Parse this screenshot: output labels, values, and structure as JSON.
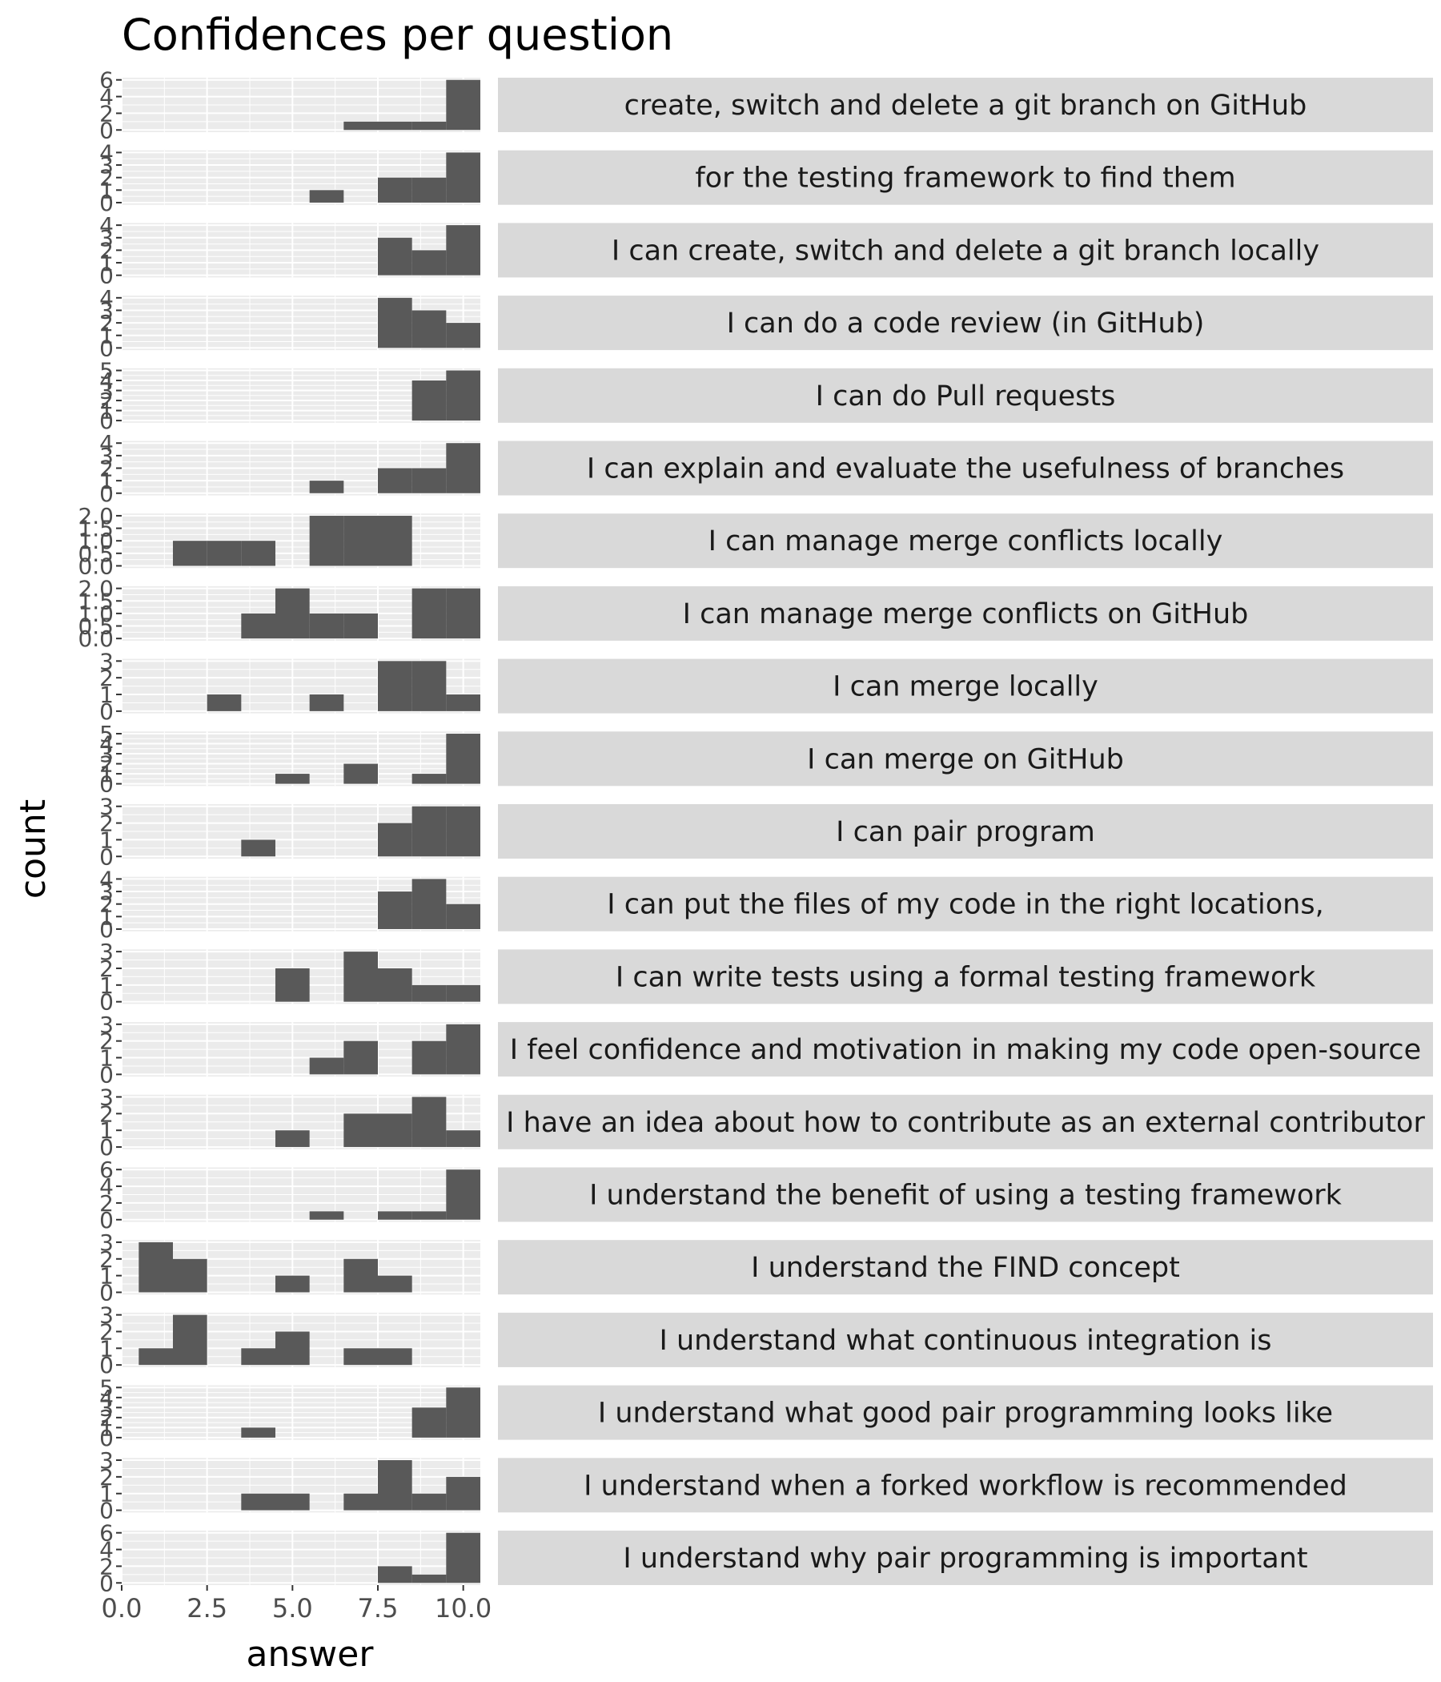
{
  "chart_data": {
    "type": "bar",
    "subtype": "faceted-histogram",
    "title": "Confidences per question",
    "xlabel": "answer",
    "ylabel": "count",
    "xlim": [
      0,
      10.5
    ],
    "xticks": [
      "0.0",
      "2.5",
      "5.0",
      "7.5",
      "10.0"
    ],
    "xtick_values": [
      0,
      2.5,
      5,
      7.5,
      10
    ],
    "bins": [
      1,
      2,
      3,
      4,
      5,
      6,
      7,
      8,
      9,
      10
    ],
    "bin_width": 1,
    "grid": true,
    "strip_position": "right",
    "facets": [
      {
        "label": "create, switch and delete a git branch on GitHub",
        "ymax": 6,
        "yticks": [
          "0",
          "2",
          "4",
          "6"
        ],
        "ytick_values": [
          0,
          2,
          4,
          6
        ],
        "counts": [
          0,
          0,
          0,
          0,
          0,
          0,
          1,
          1,
          1,
          6
        ]
      },
      {
        "label": "for the testing framework to find them",
        "ymax": 4,
        "yticks": [
          "0",
          "1",
          "2",
          "3",
          "4"
        ],
        "ytick_values": [
          0,
          1,
          2,
          3,
          4
        ],
        "counts": [
          0,
          0,
          0,
          0,
          0,
          1,
          0,
          2,
          2,
          4
        ]
      },
      {
        "label": "I can create, switch and delete a git branch locally",
        "ymax": 4,
        "yticks": [
          "0",
          "1",
          "2",
          "3",
          "4"
        ],
        "ytick_values": [
          0,
          1,
          2,
          3,
          4
        ],
        "counts": [
          0,
          0,
          0,
          0,
          0,
          0,
          0,
          3,
          2,
          4
        ]
      },
      {
        "label": "I can do a code review (in GitHub)",
        "ymax": 4,
        "yticks": [
          "0",
          "1",
          "2",
          "3",
          "4"
        ],
        "ytick_values": [
          0,
          1,
          2,
          3,
          4
        ],
        "counts": [
          0,
          0,
          0,
          0,
          0,
          0,
          0,
          4,
          3,
          2
        ]
      },
      {
        "label": "I can do Pull requests",
        "ymax": 5,
        "yticks": [
          "0",
          "1",
          "2",
          "3",
          "4",
          "5"
        ],
        "ytick_values": [
          0,
          1,
          2,
          3,
          4,
          5
        ],
        "counts": [
          0,
          0,
          0,
          0,
          0,
          0,
          0,
          0,
          4,
          5
        ]
      },
      {
        "label": "I can explain and evaluate the usefulness of branches",
        "ymax": 4,
        "yticks": [
          "0",
          "1",
          "2",
          "3",
          "4"
        ],
        "ytick_values": [
          0,
          1,
          2,
          3,
          4
        ],
        "counts": [
          0,
          0,
          0,
          0,
          0,
          1,
          0,
          2,
          2,
          4
        ]
      },
      {
        "label": "I can manage merge conflicts locally",
        "ymax": 2,
        "yticks": [
          "0.0",
          "0.5",
          "1.0",
          "1.5",
          "2.0"
        ],
        "ytick_values": [
          0,
          0.5,
          1,
          1.5,
          2
        ],
        "counts": [
          0,
          1,
          1,
          1,
          0,
          2,
          2,
          2,
          0,
          0
        ]
      },
      {
        "label": "I can manage merge conflicts on GitHub",
        "ymax": 2,
        "yticks": [
          "0.0",
          "0.5",
          "1.0",
          "1.5",
          "2.0"
        ],
        "ytick_values": [
          0,
          0.5,
          1,
          1.5,
          2
        ],
        "counts": [
          0,
          0,
          0,
          1,
          2,
          1,
          1,
          0,
          2,
          2
        ]
      },
      {
        "label": "I can merge locally",
        "ymax": 3,
        "yticks": [
          "0",
          "1",
          "2",
          "3"
        ],
        "ytick_values": [
          0,
          1,
          2,
          3
        ],
        "counts": [
          0,
          0,
          1,
          0,
          0,
          1,
          0,
          3,
          3,
          1
        ]
      },
      {
        "label": "I can merge on GitHub",
        "ymax": 5,
        "yticks": [
          "0",
          "1",
          "2",
          "3",
          "4",
          "5"
        ],
        "ytick_values": [
          0,
          1,
          2,
          3,
          4,
          5
        ],
        "counts": [
          0,
          0,
          0,
          0,
          1,
          0,
          2,
          0,
          1,
          5
        ]
      },
      {
        "label": "I can pair program",
        "ymax": 3,
        "yticks": [
          "0",
          "1",
          "2",
          "3"
        ],
        "ytick_values": [
          0,
          1,
          2,
          3
        ],
        "counts": [
          0,
          0,
          0,
          1,
          0,
          0,
          0,
          2,
          3,
          3
        ]
      },
      {
        "label": "I can put the files of my code in the right locations,",
        "ymax": 4,
        "yticks": [
          "0",
          "1",
          "2",
          "3",
          "4"
        ],
        "ytick_values": [
          0,
          1,
          2,
          3,
          4
        ],
        "counts": [
          0,
          0,
          0,
          0,
          0,
          0,
          0,
          3,
          4,
          2
        ]
      },
      {
        "label": "I can write tests using a formal testing framework",
        "ymax": 3,
        "yticks": [
          "0",
          "1",
          "2",
          "3"
        ],
        "ytick_values": [
          0,
          1,
          2,
          3
        ],
        "counts": [
          0,
          0,
          0,
          0,
          2,
          0,
          3,
          2,
          1,
          1
        ]
      },
      {
        "label": "I feel confidence and motivation in making my code open-source",
        "ymax": 3,
        "yticks": [
          "0",
          "1",
          "2",
          "3"
        ],
        "ytick_values": [
          0,
          1,
          2,
          3
        ],
        "counts": [
          0,
          0,
          0,
          0,
          0,
          1,
          2,
          0,
          2,
          3
        ]
      },
      {
        "label": "I have an idea about how to contribute as an external contributor",
        "ymax": 3,
        "yticks": [
          "0",
          "1",
          "2",
          "3"
        ],
        "ytick_values": [
          0,
          1,
          2,
          3
        ],
        "counts": [
          0,
          0,
          0,
          0,
          1,
          0,
          2,
          2,
          3,
          1
        ]
      },
      {
        "label": "I understand the benefit of using a testing framework",
        "ymax": 6,
        "yticks": [
          "0",
          "2",
          "4",
          "6"
        ],
        "ytick_values": [
          0,
          2,
          4,
          6
        ],
        "counts": [
          0,
          0,
          0,
          0,
          0,
          1,
          0,
          1,
          1,
          6
        ]
      },
      {
        "label": "I understand the FIND concept",
        "ymax": 3,
        "yticks": [
          "0",
          "1",
          "2",
          "3"
        ],
        "ytick_values": [
          0,
          1,
          2,
          3
        ],
        "counts": [
          3,
          2,
          0,
          0,
          1,
          0,
          2,
          1,
          0,
          0
        ]
      },
      {
        "label": "I understand what continuous integration is",
        "ymax": 3,
        "yticks": [
          "0",
          "1",
          "2",
          "3"
        ],
        "ytick_values": [
          0,
          1,
          2,
          3
        ],
        "counts": [
          1,
          3,
          0,
          1,
          2,
          0,
          1,
          1,
          0,
          0
        ]
      },
      {
        "label": "I understand what good pair programming looks like",
        "ymax": 5,
        "yticks": [
          "0",
          "1",
          "2",
          "3",
          "4",
          "5"
        ],
        "ytick_values": [
          0,
          1,
          2,
          3,
          4,
          5
        ],
        "counts": [
          0,
          0,
          0,
          1,
          0,
          0,
          0,
          0,
          3,
          5
        ]
      },
      {
        "label": "I understand when a forked workflow is recommended",
        "ymax": 3,
        "yticks": [
          "0",
          "1",
          "2",
          "3"
        ],
        "ytick_values": [
          0,
          1,
          2,
          3
        ],
        "counts": [
          0,
          0,
          0,
          1,
          1,
          0,
          1,
          3,
          1,
          2
        ]
      },
      {
        "label": "I understand why pair programming is important",
        "ymax": 6,
        "yticks": [
          "0",
          "2",
          "4",
          "6"
        ],
        "ytick_values": [
          0,
          2,
          4,
          6
        ],
        "counts": [
          0,
          0,
          0,
          0,
          0,
          0,
          0,
          2,
          1,
          6
        ]
      }
    ]
  },
  "colors": {
    "bar": "#595959",
    "panel_background": "#ebebeb",
    "strip_background": "#d9d9d9",
    "grid": "#ffffff"
  }
}
